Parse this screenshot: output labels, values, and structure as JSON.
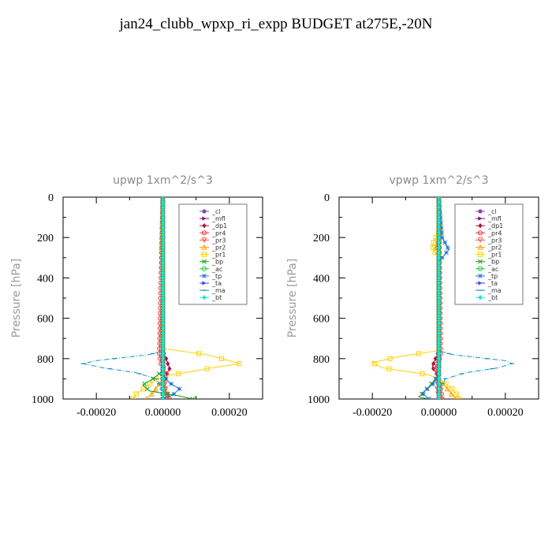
{
  "title": "jan24_clubb_wpxp_ri_expp  BUDGET at275E,-20N",
  "chart_data": [
    {
      "type": "line",
      "title": "upwp   1xm^2/s^3",
      "ylabel": "Pressure [hPa]",
      "xlabel": "",
      "xlim": [
        -0.0003,
        0.0003
      ],
      "ylim": [
        1000,
        0
      ],
      "xticks": [
        "-0.00020",
        "0.00000",
        "0.00020"
      ],
      "xtick_values": [
        -0.0002,
        0,
        0.0002
      ],
      "yticks": [
        "0",
        "200",
        "400",
        "600",
        "800",
        "1000"
      ],
      "ytick_values": [
        0,
        200,
        400,
        600,
        800,
        1000
      ],
      "legend": "top-right",
      "series": [
        {
          "name": "_cl",
          "color": "#7a4fa0",
          "marker": "circle",
          "points": [
            [
              0,
              0
            ],
            [
              0,
              1000
            ]
          ]
        },
        {
          "name": "_mfl",
          "color": "#8b0a8b",
          "marker": "tri-right",
          "points": [
            [
              0,
              0
            ],
            [
              0,
              1000
            ]
          ]
        },
        {
          "name": "_dp1",
          "color": "#b0103a",
          "marker": "diamond",
          "points": [
            [
              0,
              0
            ],
            [
              0,
              760
            ],
            [
              1e-05,
              800
            ],
            [
              2e-05,
              850
            ],
            [
              5e-06,
              900
            ],
            [
              0,
              1000
            ]
          ]
        },
        {
          "name": "_pr4",
          "color": "#ff3030",
          "marker": "circle-open",
          "points": [
            [
              0,
              0
            ],
            [
              -1e-05,
              780
            ],
            [
              -5e-06,
              830
            ],
            [
              1e-05,
              880
            ],
            [
              0,
              930
            ],
            [
              2e-05,
              1000
            ]
          ]
        },
        {
          "name": "_pr3",
          "color": "#ff5050",
          "marker": "tri-down",
          "points": [
            [
              0,
              0
            ],
            [
              0,
              800
            ],
            [
              5e-06,
              900
            ],
            [
              1e-05,
              1000
            ]
          ]
        },
        {
          "name": "_pr2",
          "color": "#ffa000",
          "marker": "tri-up",
          "points": [
            [
              0,
              0
            ],
            [
              -5e-06,
              250
            ],
            [
              0,
              270
            ],
            [
              0,
              900
            ],
            [
              -3e-05,
              970
            ],
            [
              -5e-05,
              1000
            ]
          ]
        },
        {
          "name": "_pr1",
          "color": "#ffd000",
          "marker": "square",
          "points": [
            [
              0,
              0
            ],
            [
              0,
              750
            ],
            [
              0.00013,
              780
            ],
            [
              0.0002,
              810
            ],
            [
              0.00023,
              825
            ],
            [
              0.00015,
              845
            ],
            [
              3e-05,
              880
            ],
            [
              -2e-05,
              900
            ],
            [
              -5e-05,
              940
            ],
            [
              -8e-05,
              975
            ],
            [
              -9e-05,
              1000
            ]
          ]
        },
        {
          "name": "_bp",
          "color": "#10a010",
          "marker": "x",
          "points": [
            [
              0,
              0
            ],
            [
              0,
              860
            ],
            [
              -3e-05,
              900
            ],
            [
              -6e-05,
              930
            ],
            [
              -4e-05,
              960
            ],
            [
              5e-05,
              985
            ],
            [
              9e-05,
              1000
            ]
          ]
        },
        {
          "name": "_ac",
          "color": "#20c840",
          "marker": "circle-open",
          "points": [
            [
              0,
              0
            ],
            [
              0,
              1000
            ]
          ]
        },
        {
          "name": "_tp",
          "color": "#2070d0",
          "marker": "star",
          "points": [
            [
              0,
              0
            ],
            [
              0,
              880
            ],
            [
              2e-05,
              920
            ],
            [
              5e-05,
              950
            ],
            [
              3e-05,
              980
            ],
            [
              0,
              1000
            ]
          ]
        },
        {
          "name": "_ta",
          "color": "#4040ff",
          "marker": "tri-right",
          "points": [
            [
              0,
              0
            ],
            [
              0,
              1000
            ]
          ]
        },
        {
          "name": "_ma",
          "color": "#1090c0",
          "marker": "dash",
          "points": [
            [
              0,
              0
            ],
            [
              0,
              760
            ],
            [
              -4e-05,
              780
            ],
            [
              -0.0002,
              810
            ],
            [
              -0.00024,
              825
            ],
            [
              -0.00018,
              845
            ],
            [
              -8e-05,
              870
            ],
            [
              -2e-05,
              900
            ],
            [
              0,
              960
            ],
            [
              0,
              1000
            ]
          ]
        },
        {
          "name": "_bt",
          "color": "#20e0e0",
          "marker": "diamond",
          "points": [
            [
              0,
              0
            ],
            [
              0,
              1000
            ]
          ]
        }
      ]
    },
    {
      "type": "line",
      "title": "vpwp   1xm^2/s^3",
      "ylabel": "Pressure [hPa]",
      "xlabel": "",
      "xlim": [
        -0.0003,
        0.0003
      ],
      "ylim": [
        1000,
        0
      ],
      "xticks": [
        "-0.00020",
        "0.00000",
        "0.00020"
      ],
      "xtick_values": [
        -0.0002,
        0,
        0.0002
      ],
      "yticks": [
        "0",
        "200",
        "400",
        "600",
        "800",
        "1000"
      ],
      "ytick_values": [
        0,
        200,
        400,
        600,
        800,
        1000
      ],
      "legend": "top-right",
      "series": [
        {
          "name": "_cl",
          "color": "#7a4fa0",
          "marker": "circle",
          "points": [
            [
              0,
              0
            ],
            [
              0,
              1000
            ]
          ]
        },
        {
          "name": "_mfl",
          "color": "#8b0a8b",
          "marker": "tri-right",
          "points": [
            [
              0,
              0
            ],
            [
              0,
              1000
            ]
          ]
        },
        {
          "name": "_dp1",
          "color": "#b0103a",
          "marker": "diamond",
          "points": [
            [
              0,
              0
            ],
            [
              0,
              760
            ],
            [
              -1e-05,
              800
            ],
            [
              -2e-05,
              840
            ],
            [
              -5e-06,
              880
            ],
            [
              0,
              1000
            ]
          ]
        },
        {
          "name": "_pr4",
          "color": "#ff3030",
          "marker": "circle-open",
          "points": [
            [
              0,
              0
            ],
            [
              5e-06,
              790
            ],
            [
              -1e-05,
              840
            ],
            [
              0,
              900
            ],
            [
              1e-05,
              1000
            ]
          ]
        },
        {
          "name": "_pr3",
          "color": "#ff5050",
          "marker": "tri-down",
          "points": [
            [
              0,
              0
            ],
            [
              0,
              850
            ],
            [
              -5e-06,
              950
            ],
            [
              0,
              1000
            ]
          ]
        },
        {
          "name": "_pr2",
          "color": "#ffa000",
          "marker": "tri-up",
          "points": [
            [
              0,
              0
            ],
            [
              5e-06,
              180
            ],
            [
              -1e-05,
              250
            ],
            [
              -5e-06,
              270
            ],
            [
              0,
              290
            ],
            [
              0,
              900
            ],
            [
              3e-05,
              960
            ],
            [
              5e-05,
              1000
            ]
          ]
        },
        {
          "name": "_pr1",
          "color": "#ffd000",
          "marker": "square",
          "points": [
            [
              0,
              0
            ],
            [
              0,
              170
            ],
            [
              -2e-05,
              240
            ],
            [
              -1e-05,
              280
            ],
            [
              0,
              300
            ],
            [
              0,
              760
            ],
            [
              -0.00012,
              790
            ],
            [
              -0.0002,
              820
            ],
            [
              -0.00017,
              845
            ],
            [
              -3e-05,
              880
            ],
            [
              1e-05,
              910
            ],
            [
              4e-05,
              950
            ],
            [
              6e-05,
              990
            ],
            [
              6e-05,
              1000
            ]
          ]
        },
        {
          "name": "_bp",
          "color": "#10a010",
          "marker": "x",
          "points": [
            [
              0,
              0
            ],
            [
              0,
              880
            ],
            [
              -3e-05,
              940
            ],
            [
              -6e-05,
              990
            ],
            [
              -3e-05,
              1000
            ]
          ]
        },
        {
          "name": "_ac",
          "color": "#20c840",
          "marker": "circle-open",
          "points": [
            [
              0,
              0
            ],
            [
              0,
              1000
            ]
          ]
        },
        {
          "name": "_tp",
          "color": "#2070d0",
          "marker": "star",
          "points": [
            [
              0,
              0
            ],
            [
              1e-05,
              200
            ],
            [
              3e-05,
              260
            ],
            [
              1e-05,
              300
            ],
            [
              0,
              320
            ],
            [
              0,
              880
            ],
            [
              -2e-05,
              930
            ],
            [
              -5e-05,
              970
            ],
            [
              -3e-05,
              1000
            ]
          ]
        },
        {
          "name": "_ta",
          "color": "#4040ff",
          "marker": "tri-right",
          "points": [
            [
              0,
              0
            ],
            [
              0,
              1000
            ]
          ]
        },
        {
          "name": "_ma",
          "color": "#1090c0",
          "marker": "dash",
          "points": [
            [
              0,
              0
            ],
            [
              0,
              760
            ],
            [
              4e-05,
              780
            ],
            [
              0.0002,
              810
            ],
            [
              0.00022,
              825
            ],
            [
              0.00018,
              845
            ],
            [
              8e-05,
              870
            ],
            [
              2e-05,
              900
            ],
            [
              0,
              960
            ],
            [
              0,
              1000
            ]
          ]
        },
        {
          "name": "_bt",
          "color": "#20e0e0",
          "marker": "diamond",
          "points": [
            [
              0,
              0
            ],
            [
              0,
              1000
            ]
          ]
        }
      ]
    }
  ]
}
